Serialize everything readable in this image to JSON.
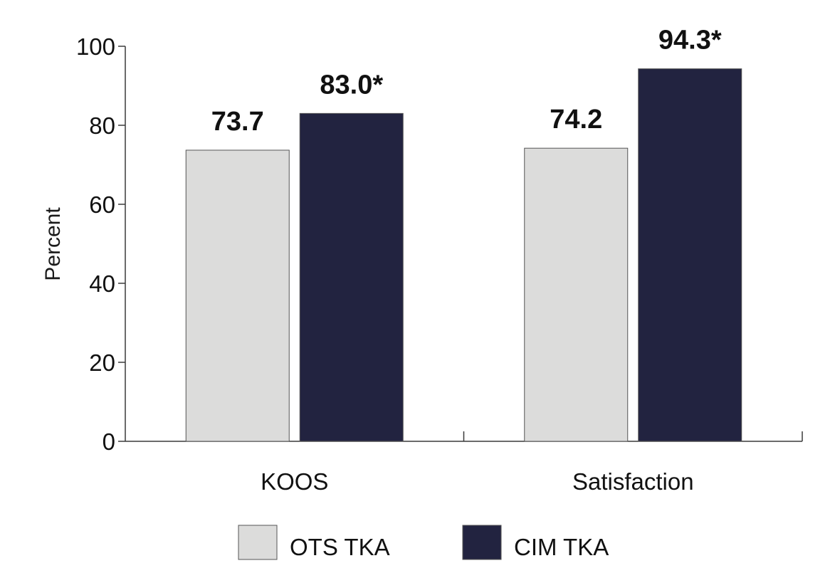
{
  "chart_data": {
    "type": "bar",
    "title": "",
    "xlabel": "",
    "ylabel": "Percent",
    "ylim": [
      0,
      100
    ],
    "yticks": [
      0,
      20,
      40,
      60,
      80,
      100
    ],
    "categories": [
      "KOOS",
      "Satisfaction"
    ],
    "series": [
      {
        "name": "OTS TKA",
        "color": "#dcdcdb",
        "values": [
          73.7,
          74.2
        ],
        "labels": [
          "73.7",
          "74.2"
        ]
      },
      {
        "name": "CIM TKA",
        "color": "#222340",
        "values": [
          83.0,
          94.3
        ],
        "labels": [
          "83.0*",
          "94.3*"
        ]
      }
    ],
    "grid": false,
    "legend_position": "bottom",
    "axis_color": "#3a3a3a"
  }
}
